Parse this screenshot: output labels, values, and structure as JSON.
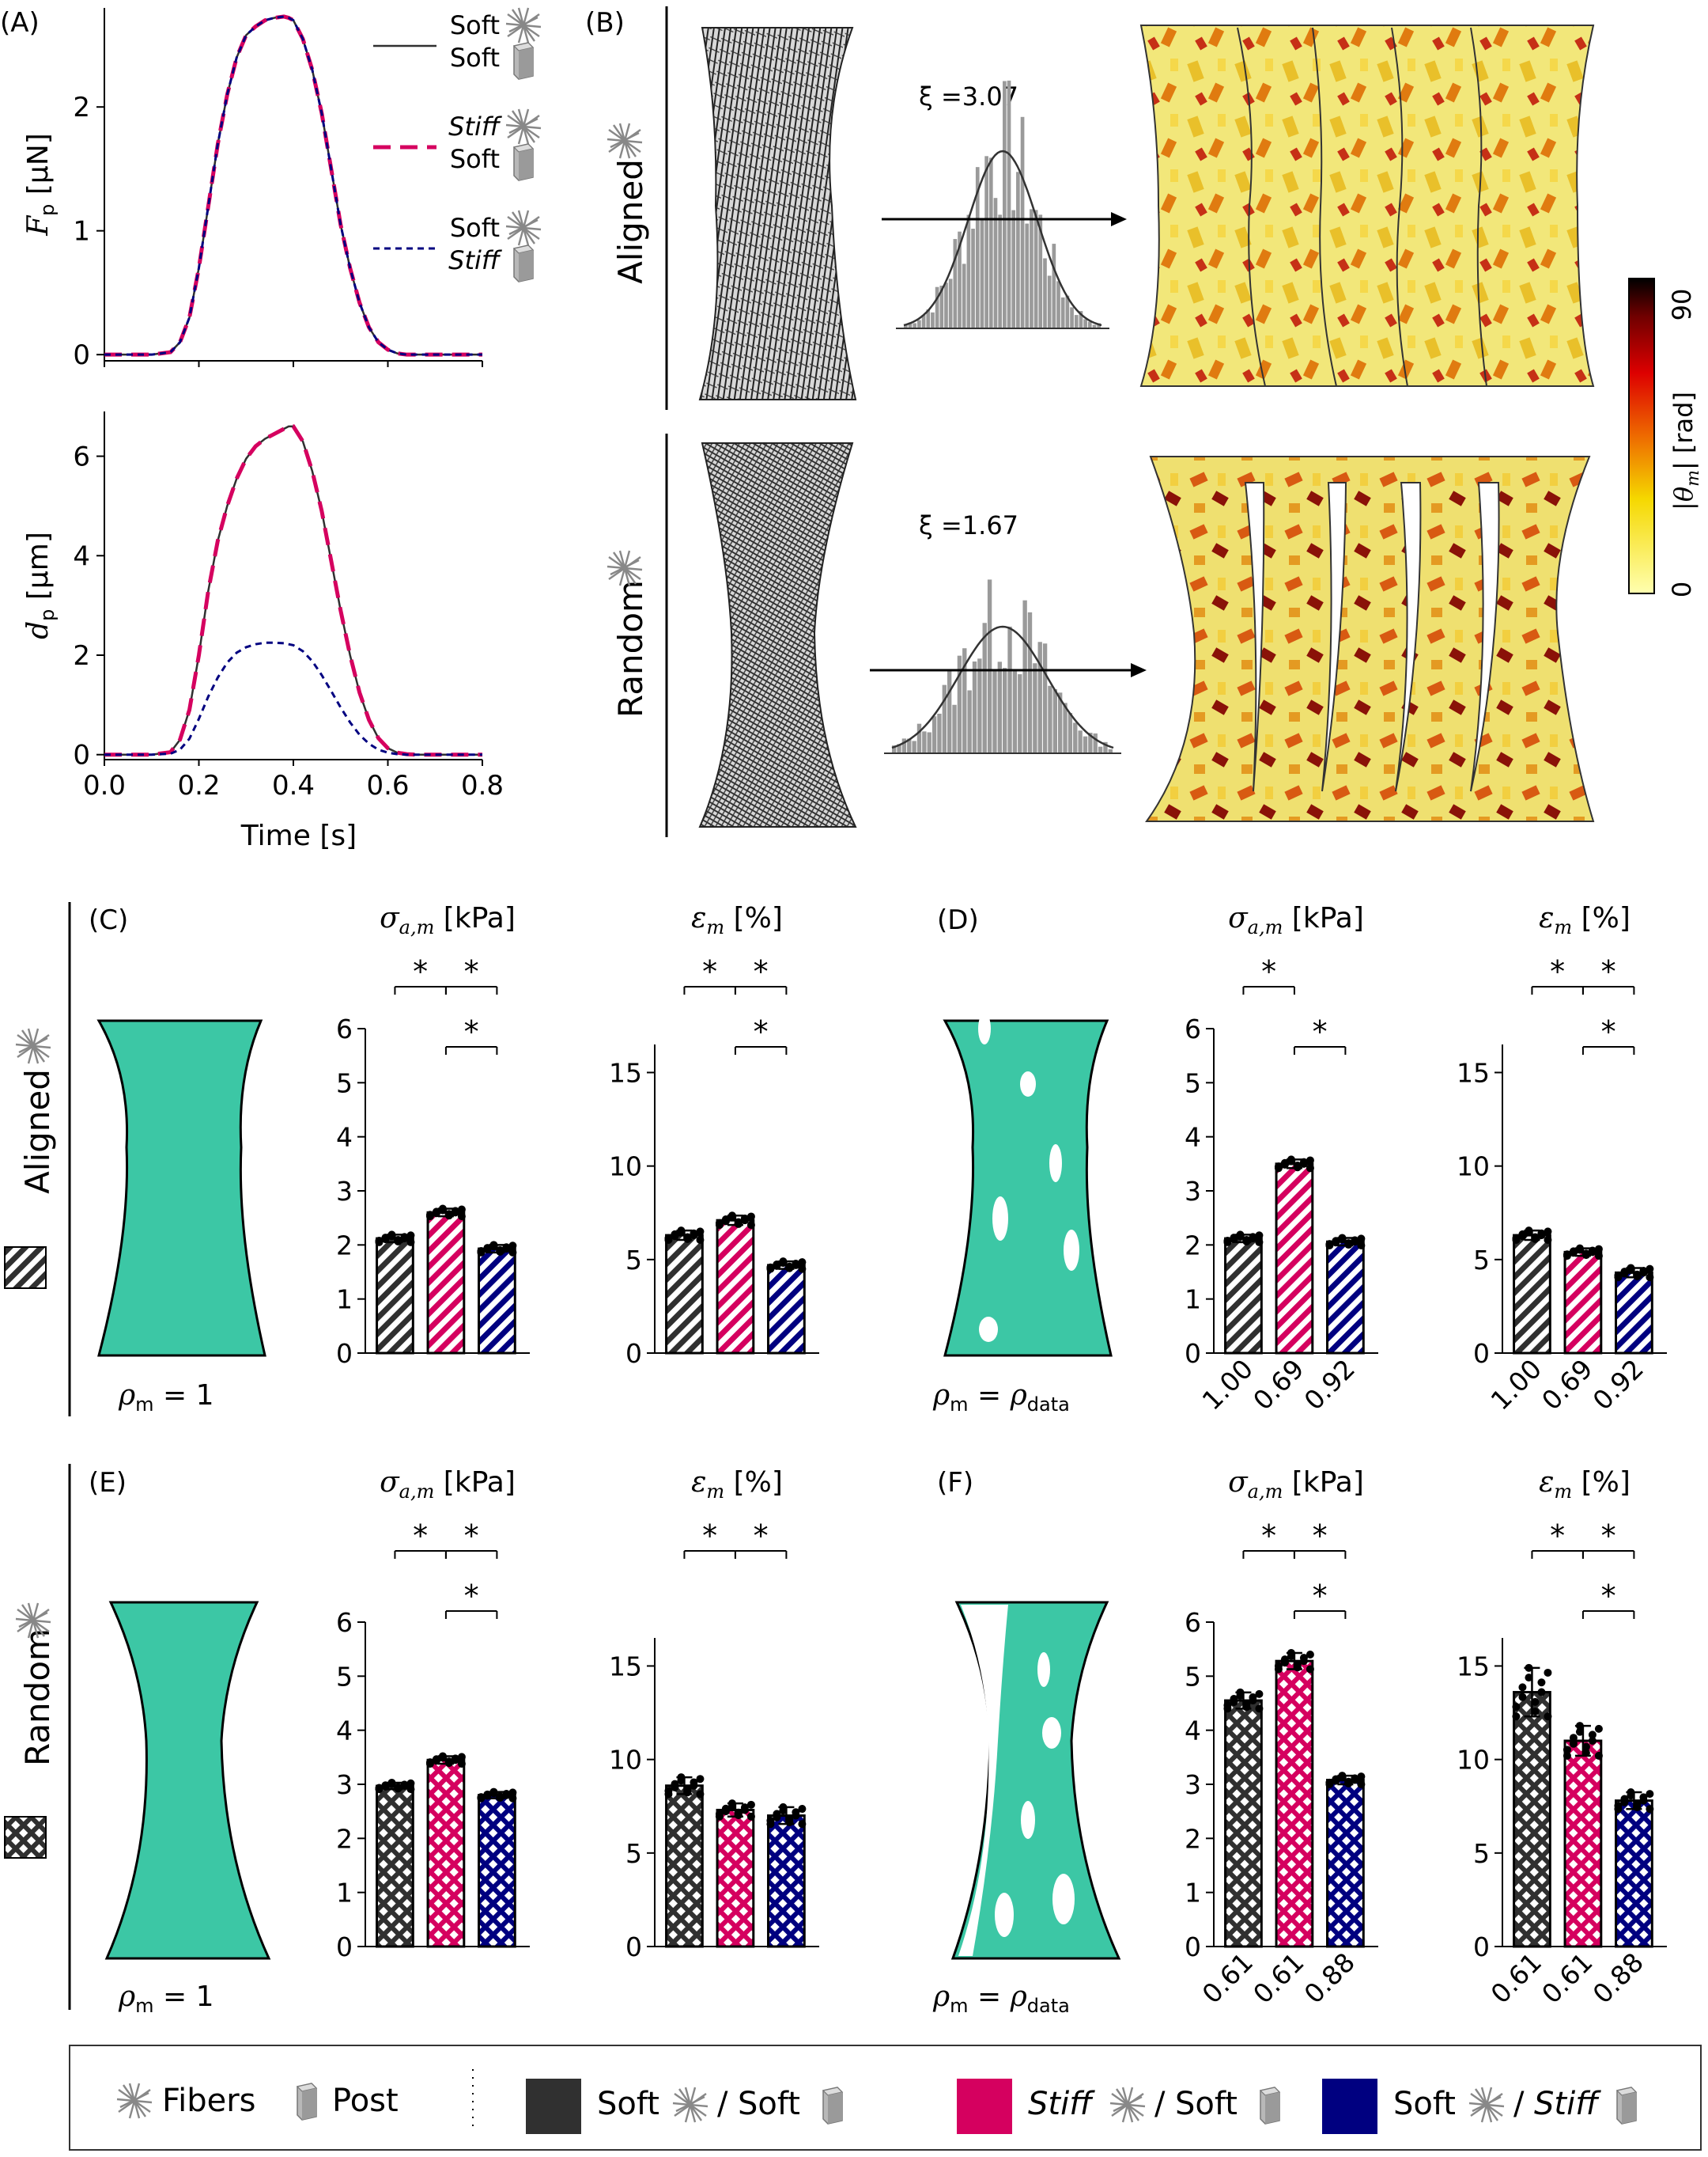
{
  "colors": {
    "soft_soft": "#303030",
    "stiff_soft": "#d5005f",
    "soft_stiff": "#000080",
    "matrix": "#3cc7a5"
  },
  "panelA": {
    "label": "(A)",
    "xlabel": "Time [s]",
    "legend": [
      {
        "fiber": "Soft",
        "post": "Soft",
        "fiber_italic": false,
        "post_italic": false,
        "style": "solid",
        "color": "#303030"
      },
      {
        "fiber": "Stiff",
        "post": "Soft",
        "fiber_italic": true,
        "post_italic": false,
        "style": "dash",
        "color": "#d5005f"
      },
      {
        "fiber": "Soft",
        "post": "Stiff",
        "fiber_italic": false,
        "post_italic": true,
        "style": "dot",
        "color": "#000080"
      }
    ]
  },
  "chart_data": [
    {
      "id": "A1",
      "type": "line",
      "ylabel": "F_p [µN]",
      "ylabel_main": "F",
      "ylabel_sub": "p",
      "ylabel_unit": "[µN]",
      "xlim": [
        0,
        0.8
      ],
      "ylim": [
        -0.05,
        2.8
      ],
      "yticks": [
        0,
        1,
        2
      ],
      "xticks": [
        0.0,
        0.2,
        0.4,
        0.6,
        0.8
      ],
      "x": [
        0,
        0.05,
        0.1,
        0.14,
        0.16,
        0.18,
        0.2,
        0.22,
        0.24,
        0.26,
        0.28,
        0.3,
        0.32,
        0.34,
        0.36,
        0.38,
        0.39,
        0.4,
        0.42,
        0.44,
        0.46,
        0.48,
        0.5,
        0.52,
        0.54,
        0.56,
        0.58,
        0.6,
        0.62,
        0.64,
        0.66,
        0.7,
        0.75,
        0.8
      ],
      "series": [
        {
          "name": "Soft / Soft",
          "values": [
            0,
            0,
            0,
            0.02,
            0.1,
            0.3,
            0.7,
            1.2,
            1.7,
            2.1,
            2.4,
            2.58,
            2.65,
            2.7,
            2.72,
            2.73,
            2.72,
            2.7,
            2.55,
            2.3,
            1.95,
            1.5,
            1.05,
            0.7,
            0.42,
            0.22,
            0.1,
            0.04,
            0.01,
            0,
            0,
            0,
            0,
            0
          ]
        },
        {
          "name": "Stiff / Soft",
          "values": [
            0,
            0,
            0,
            0.02,
            0.1,
            0.3,
            0.7,
            1.2,
            1.7,
            2.1,
            2.4,
            2.58,
            2.65,
            2.7,
            2.72,
            2.73,
            2.72,
            2.7,
            2.55,
            2.3,
            1.95,
            1.5,
            1.05,
            0.7,
            0.42,
            0.22,
            0.1,
            0.04,
            0.01,
            0,
            0,
            0,
            0,
            0
          ]
        },
        {
          "name": "Soft / Stiff",
          "values": [
            0,
            0,
            0,
            0.02,
            0.1,
            0.3,
            0.7,
            1.2,
            1.7,
            2.1,
            2.4,
            2.58,
            2.65,
            2.7,
            2.72,
            2.73,
            2.72,
            2.7,
            2.55,
            2.3,
            1.95,
            1.5,
            1.05,
            0.7,
            0.42,
            0.22,
            0.1,
            0.04,
            0.01,
            0,
            0,
            0,
            0,
            0
          ]
        }
      ]
    },
    {
      "id": "A2",
      "type": "line",
      "ylabel": "d_p [µm]",
      "ylabel_main": "d",
      "ylabel_sub": "p",
      "ylabel_unit": "[µm]",
      "xlim": [
        0,
        0.8
      ],
      "ylim": [
        -0.1,
        6.9
      ],
      "yticks": [
        0,
        2,
        4,
        6
      ],
      "xticks": [
        0.0,
        0.2,
        0.4,
        0.6,
        0.8
      ],
      "xticklabels": [
        "0.0",
        "0.2",
        "0.4",
        "0.6",
        "0.8"
      ],
      "x": [
        0,
        0.05,
        0.1,
        0.14,
        0.16,
        0.18,
        0.2,
        0.22,
        0.24,
        0.26,
        0.28,
        0.3,
        0.32,
        0.34,
        0.36,
        0.38,
        0.39,
        0.4,
        0.42,
        0.44,
        0.46,
        0.48,
        0.5,
        0.52,
        0.54,
        0.56,
        0.58,
        0.6,
        0.62,
        0.64,
        0.66,
        0.7,
        0.75,
        0.8
      ],
      "series": [
        {
          "name": "Soft / Soft",
          "values": [
            0,
            0,
            0,
            0.05,
            0.3,
            0.9,
            2.0,
            3.3,
            4.3,
            5.0,
            5.55,
            5.95,
            6.2,
            6.35,
            6.45,
            6.55,
            6.6,
            6.6,
            6.3,
            5.7,
            4.9,
            3.9,
            2.9,
            2.0,
            1.25,
            0.7,
            0.33,
            0.13,
            0.04,
            0.01,
            0,
            0,
            0,
            0
          ]
        },
        {
          "name": "Stiff / Soft",
          "values": [
            0,
            0,
            0,
            0.05,
            0.3,
            0.9,
            2.0,
            3.3,
            4.3,
            5.0,
            5.55,
            5.95,
            6.2,
            6.35,
            6.45,
            6.55,
            6.6,
            6.6,
            6.3,
            5.7,
            4.9,
            3.9,
            2.9,
            2.0,
            1.25,
            0.7,
            0.33,
            0.13,
            0.04,
            0.01,
            0,
            0,
            0,
            0
          ]
        },
        {
          "name": "Soft / Stiff",
          "values": [
            0,
            0,
            0,
            0.02,
            0.1,
            0.32,
            0.72,
            1.17,
            1.55,
            1.85,
            2.05,
            2.16,
            2.22,
            2.25,
            2.25,
            2.24,
            2.22,
            2.2,
            2.08,
            1.88,
            1.6,
            1.28,
            0.95,
            0.65,
            0.4,
            0.22,
            0.1,
            0.04,
            0.01,
            0,
            0,
            0,
            0,
            0
          ]
        }
      ]
    },
    {
      "id": "C1",
      "type": "bar",
      "panel": "C",
      "pattern": "diag",
      "title_main": "σ",
      "title_sub": "a,m",
      "title_unit": "[kPa]",
      "ylim": [
        0,
        6
      ],
      "yticks": [
        0,
        1,
        2,
        3,
        4,
        5,
        6
      ],
      "categories": [
        "Soft / Soft",
        "Stiff / Soft",
        "Soft / Stiff"
      ],
      "values": [
        2.12,
        2.6,
        1.93
      ],
      "err": [
        0.07,
        0.07,
        0.07
      ],
      "sig": [
        {
          "from": 0,
          "to": 1,
          "row": 0,
          "label": "*"
        },
        {
          "from": 1,
          "to": 2,
          "row": 0,
          "label": "*"
        },
        {
          "from": 1,
          "to": 2,
          "row": 1,
          "label": "*"
        }
      ]
    },
    {
      "id": "C2",
      "type": "bar",
      "panel": "C",
      "pattern": "diag",
      "title_main": "ε",
      "title_sub": "m",
      "title_unit": "[%]",
      "ylim": [
        0,
        16.5
      ],
      "yticks": [
        0,
        5,
        10,
        15
      ],
      "categories": [
        "Soft / Soft",
        "Stiff / Soft",
        "Soft / Stiff"
      ],
      "values": [
        6.3,
        7.1,
        4.7
      ],
      "err": [
        0.25,
        0.25,
        0.2
      ],
      "sig": [
        {
          "from": 0,
          "to": 1,
          "row": 0,
          "label": "*"
        },
        {
          "from": 1,
          "to": 2,
          "row": 0,
          "label": "*"
        },
        {
          "from": 1,
          "to": 2,
          "row": 1,
          "label": "*"
        }
      ]
    },
    {
      "id": "D1",
      "type": "bar",
      "panel": "D",
      "pattern": "diag",
      "title_main": "σ",
      "title_sub": "a,m",
      "title_unit": "[kPa]",
      "ylim": [
        0,
        6
      ],
      "yticks": [
        0,
        1,
        2,
        3,
        4,
        5,
        6
      ],
      "categories": [
        "Soft / Soft",
        "Stiff / Soft",
        "Soft / Stiff"
      ],
      "values": [
        2.12,
        3.5,
        2.06
      ],
      "err": [
        0.07,
        0.08,
        0.07
      ],
      "xticklabels": [
        "1.00",
        "0.69",
        "0.92"
      ],
      "sig": [
        {
          "from": 0,
          "to": 1,
          "row": 0,
          "label": "*"
        },
        {
          "from": 1,
          "to": 2,
          "row": 1,
          "label": "*"
        }
      ]
    },
    {
      "id": "D2",
      "type": "bar",
      "panel": "D",
      "pattern": "diag",
      "title_main": "ε",
      "title_sub": "m",
      "title_unit": "[%]",
      "ylim": [
        0,
        16.5
      ],
      "yticks": [
        0,
        5,
        10,
        15
      ],
      "categories": [
        "Soft / Soft",
        "Stiff / Soft",
        "Soft / Stiff"
      ],
      "values": [
        6.3,
        5.4,
        4.3
      ],
      "err": [
        0.25,
        0.2,
        0.25
      ],
      "xticklabels": [
        "1.00",
        "0.69",
        "0.92"
      ],
      "sig": [
        {
          "from": 0,
          "to": 1,
          "row": 0,
          "label": "*"
        },
        {
          "from": 1,
          "to": 2,
          "row": 0,
          "label": "*"
        },
        {
          "from": 1,
          "to": 2,
          "row": 1,
          "label": "*"
        }
      ]
    },
    {
      "id": "E1",
      "type": "bar",
      "panel": "E",
      "pattern": "cross",
      "title_main": "σ",
      "title_sub": "a,m",
      "title_unit": "[kPa]",
      "ylim": [
        0,
        6
      ],
      "yticks": [
        0,
        1,
        2,
        3,
        4,
        5,
        6
      ],
      "categories": [
        "Soft / Soft",
        "Stiff / Soft",
        "Soft / Stiff"
      ],
      "values": [
        2.97,
        3.45,
        2.8
      ],
      "err": [
        0.06,
        0.07,
        0.06
      ],
      "sig": [
        {
          "from": 0,
          "to": 1,
          "row": 0,
          "label": "*"
        },
        {
          "from": 1,
          "to": 2,
          "row": 0,
          "label": "*"
        },
        {
          "from": 1,
          "to": 2,
          "row": 1,
          "label": "*"
        }
      ]
    },
    {
      "id": "E2",
      "type": "bar",
      "panel": "E",
      "pattern": "cross",
      "title_main": "ε",
      "title_sub": "m",
      "title_unit": "[%]",
      "ylim": [
        0,
        16.5
      ],
      "yticks": [
        0,
        5,
        10,
        15
      ],
      "categories": [
        "Soft / Soft",
        "Stiff / Soft",
        "Soft / Stiff"
      ],
      "values": [
        8.6,
        7.3,
        7.0
      ],
      "err": [
        0.45,
        0.35,
        0.45
      ],
      "sig": [
        {
          "from": 0,
          "to": 1,
          "row": 0,
          "label": "*"
        },
        {
          "from": 1,
          "to": 2,
          "row": 0,
          "label": "*"
        }
      ]
    },
    {
      "id": "F1",
      "type": "bar",
      "panel": "F",
      "pattern": "cross",
      "title_main": "σ",
      "title_sub": "a,m",
      "title_unit": "[kPa]",
      "ylim": [
        0,
        6
      ],
      "yticks": [
        0,
        1,
        2,
        3,
        4,
        5,
        6
      ],
      "categories": [
        "Soft / Soft",
        "Stiff / Soft",
        "Soft / Stiff"
      ],
      "values": [
        4.55,
        5.28,
        3.08
      ],
      "err": [
        0.15,
        0.15,
        0.08
      ],
      "xticklabels": [
        "0.61",
        "0.61",
        "0.88"
      ],
      "sig": [
        {
          "from": 0,
          "to": 1,
          "row": 0,
          "label": "*"
        },
        {
          "from": 1,
          "to": 2,
          "row": 0,
          "label": "*"
        },
        {
          "from": 1,
          "to": 2,
          "row": 1,
          "label": "*"
        }
      ]
    },
    {
      "id": "F2",
      "type": "bar",
      "panel": "F",
      "pattern": "cross",
      "title_main": "ε",
      "title_sub": "m",
      "title_unit": "[%]",
      "ylim": [
        0,
        16.5
      ],
      "yticks": [
        0,
        5,
        10,
        15
      ],
      "categories": [
        "Soft / Soft",
        "Stiff / Soft",
        "Soft / Stiff"
      ],
      "values": [
        13.6,
        11.0,
        7.8
      ],
      "err": [
        1.3,
        0.8,
        0.45
      ],
      "xticklabels": [
        "0.61",
        "0.61",
        "0.88"
      ],
      "sig": [
        {
          "from": 0,
          "to": 1,
          "row": 0,
          "label": "*"
        },
        {
          "from": 1,
          "to": 2,
          "row": 0,
          "label": "*"
        },
        {
          "from": 1,
          "to": 2,
          "row": 1,
          "label": "*"
        }
      ]
    }
  ],
  "panelB": {
    "label": "(B)",
    "aligned_label": "Aligned",
    "random_label": "Random",
    "aligned_xi": "ξ =3.07",
    "random_xi": "ξ =1.67",
    "colorbar": {
      "label": "|θ_m| [rad]",
      "label_main": "|θ",
      "label_sub": "m",
      "label_unit": "| [rad]",
      "max": "90",
      "min": "0"
    }
  },
  "panels": {
    "C": "(C)",
    "D": "(D)",
    "E": "(E)",
    "F": "(F)"
  },
  "side": {
    "aligned": "Aligned",
    "random": "Random"
  },
  "rho": {
    "one": "ρ",
    "one_sub": "m",
    "one_eq": " = 1",
    "data_eq": " = ",
    "data_rho": "ρ",
    "data_sub": "data"
  },
  "legend_bottom": {
    "fibers": "Fibers",
    "post": "Post",
    "items": [
      {
        "fiber": "Soft",
        "fiber_italic": false,
        "post": "Soft",
        "post_italic": false,
        "color": "#303030"
      },
      {
        "fiber": "Stiff",
        "fiber_italic": true,
        "post": "Soft",
        "post_italic": false,
        "color": "#d5005f"
      },
      {
        "fiber": "Soft",
        "fiber_italic": false,
        "post": "Stiff",
        "post_italic": true,
        "color": "#000080"
      }
    ]
  }
}
